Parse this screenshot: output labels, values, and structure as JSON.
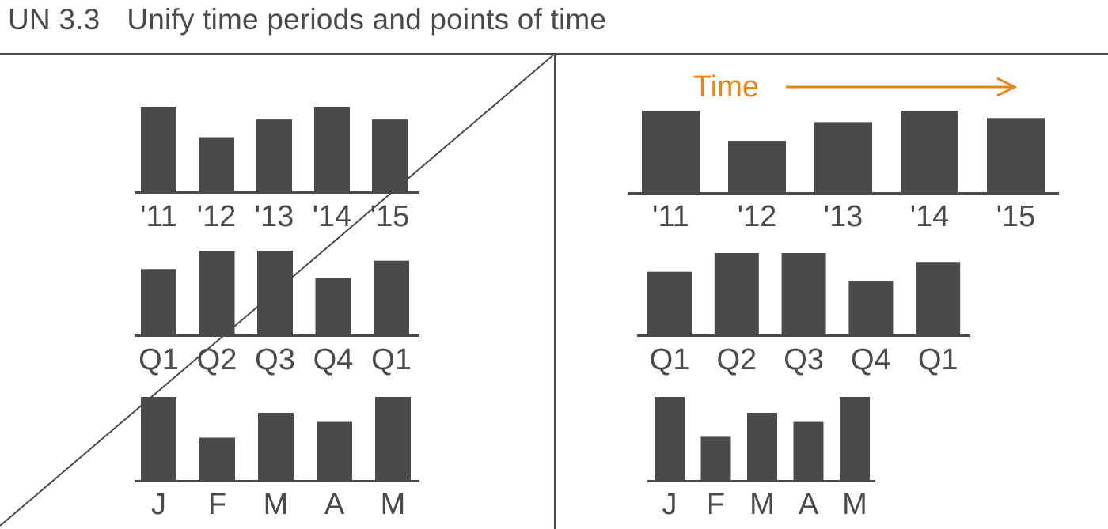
{
  "heading": {
    "number": "UN 3.3",
    "text": "Unify time periods and points of time"
  },
  "colors": {
    "bar": "#4a4a4a",
    "text": "#4a4a4a",
    "rule": "#4a4a4a",
    "accent": "#e8841a",
    "background": "#ffffff"
  },
  "time_arrow_label": "Time",
  "chart_data": [
    {
      "type": "bar",
      "panel": "left",
      "categories": [
        "'11",
        "'12",
        "'13",
        "'14",
        "'15"
      ],
      "values": [
        100,
        64,
        85,
        100,
        85
      ],
      "ylim": [
        0,
        100
      ]
    },
    {
      "type": "bar",
      "panel": "left",
      "categories": [
        "Q1",
        "Q2",
        "Q3",
        "Q4",
        "Q1"
      ],
      "values": [
        78,
        100,
        100,
        67,
        88
      ],
      "ylim": [
        0,
        100
      ]
    },
    {
      "type": "bar",
      "panel": "left",
      "categories": [
        "J",
        "F",
        "M",
        "A",
        "M"
      ],
      "values": [
        100,
        51,
        81,
        70,
        100
      ],
      "ylim": [
        0,
        100
      ]
    },
    {
      "type": "bar",
      "panel": "right",
      "categories": [
        "'11",
        "'12",
        "'13",
        "'14",
        "'15"
      ],
      "values": [
        100,
        63,
        86,
        100,
        91
      ],
      "ylim": [
        0,
        100
      ]
    },
    {
      "type": "bar",
      "panel": "right",
      "categories": [
        "Q1",
        "Q2",
        "Q3",
        "Q4",
        "Q1"
      ],
      "values": [
        77,
        100,
        100,
        66,
        89
      ],
      "ylim": [
        0,
        100
      ]
    },
    {
      "type": "bar",
      "panel": "right",
      "categories": [
        "J",
        "F",
        "M",
        "A",
        "M"
      ],
      "values": [
        100,
        52,
        81,
        70,
        100
      ],
      "ylim": [
        0,
        100
      ]
    }
  ]
}
